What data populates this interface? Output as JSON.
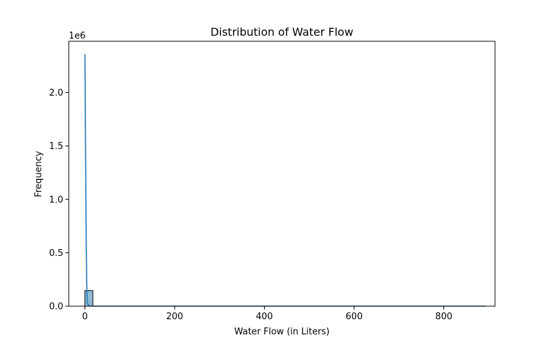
{
  "chart_data": {
    "type": "bar",
    "title": "Distribution of Water Flow",
    "xlabel": "Water Flow (in Liters)",
    "ylabel": "Frequency",
    "y_offset_label": "1e6",
    "y_scale_factor": 1000000,
    "xlim": [
      -36,
      914
    ],
    "ylim": [
      0,
      2480000
    ],
    "x_ticks": [
      0,
      200,
      400,
      600,
      800
    ],
    "x_tick_labels": [
      "0",
      "200",
      "400",
      "600",
      "800"
    ],
    "y_ticks": [
      0,
      500000,
      1000000,
      1500000,
      2000000
    ],
    "y_tick_labels": [
      "0.0",
      "0.5",
      "1.0",
      "1.5",
      "2.0"
    ],
    "bars": [
      {
        "x0": 0,
        "x1": 17.8,
        "count": 145000
      }
    ],
    "kde": {
      "x": [
        0,
        1,
        2,
        3,
        4,
        5,
        6,
        8,
        12,
        20,
        40,
        100,
        200,
        400,
        600,
        800,
        893
      ],
      "y": [
        2360000,
        1800000,
        1100000,
        550000,
        230000,
        80000,
        28000,
        6000,
        1500,
        500,
        0,
        0,
        0,
        0,
        0,
        0,
        0
      ]
    },
    "bar_color": "#1f77b4",
    "bar_alpha": 0.5,
    "line_color": "#1f77b4",
    "grid": false,
    "legend": "none"
  }
}
